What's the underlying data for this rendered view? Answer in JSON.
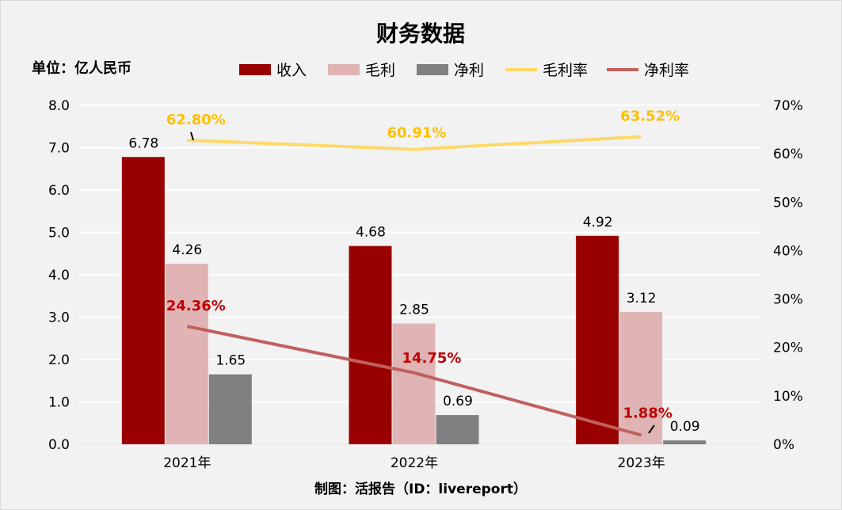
{
  "chart_data": {
    "type": "bar+line",
    "title": "财务数据",
    "unit_label": "单位：亿人民币",
    "source": "制图：活报告（ID：livereport）",
    "categories": [
      "2021年",
      "2022年",
      "2023年"
    ],
    "left_axis": {
      "ylim": [
        0,
        8
      ],
      "ticks": [
        "0.0",
        "1.0",
        "2.0",
        "3.0",
        "4.0",
        "5.0",
        "6.0",
        "7.0",
        "8.0"
      ]
    },
    "right_axis": {
      "ylim": [
        0,
        70
      ],
      "ticks": [
        "0%",
        "10%",
        "20%",
        "30%",
        "40%",
        "50%",
        "60%",
        "70%"
      ]
    },
    "grid": true,
    "legend_placement": "top",
    "bar_series": [
      {
        "name": "收入",
        "color": "#990000",
        "values": [
          6.78,
          4.68,
          4.92
        ],
        "labels": [
          "6.78",
          "4.68",
          "4.92"
        ]
      },
      {
        "name": "毛利",
        "color": "#e0b4b4",
        "values": [
          4.26,
          2.85,
          3.12
        ],
        "labels": [
          "4.26",
          "2.85",
          "3.12"
        ]
      },
      {
        "name": "净利",
        "color": "#808080",
        "values": [
          1.65,
          0.69,
          0.09
        ],
        "labels": [
          "1.65",
          "0.69",
          "0.09"
        ]
      }
    ],
    "line_series": [
      {
        "name": "毛利率",
        "color": "#ffd966",
        "label_color": "#ffc000",
        "values": [
          62.8,
          60.91,
          63.52
        ],
        "labels": [
          "62.80%",
          "60.91%",
          "63.52%"
        ]
      },
      {
        "name": "净利率",
        "color": "#c0605e",
        "label_color": "#c00000",
        "values": [
          24.36,
          14.75,
          1.88
        ],
        "labels": [
          "24.36%",
          "14.75%",
          "1.88%"
        ]
      }
    ]
  }
}
